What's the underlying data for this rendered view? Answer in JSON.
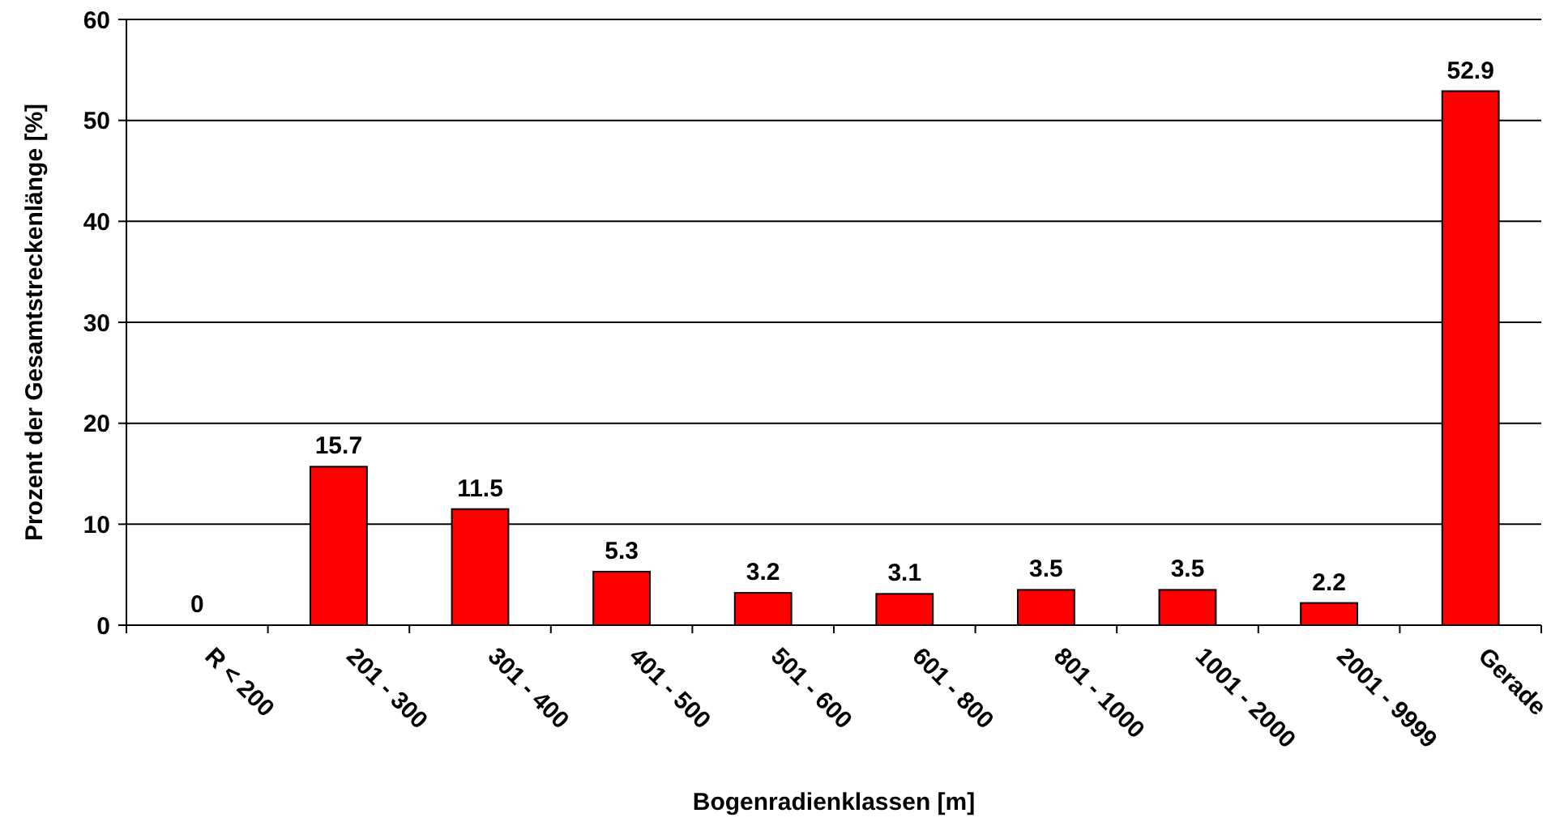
{
  "chart_data": {
    "type": "bar",
    "xlabel": "Bogenradienklassen [m]",
    "ylabel": "Prozent der Gesamtstreckenlänge [%]",
    "categories": [
      "R < 200",
      "201 - 300",
      "301 - 400",
      "401 - 500",
      "501 - 600",
      "601 - 800",
      "801 - 1000",
      "1001 - 2000",
      "2001 - 9999",
      "Gerade"
    ],
    "values": [
      0,
      15.7,
      11.5,
      5.3,
      3.2,
      3.1,
      3.5,
      3.5,
      2.2,
      52.9
    ],
    "color": "#ff0000",
    "ylim": [
      0,
      60
    ],
    "yticks": [
      0,
      10,
      20,
      30,
      40,
      50,
      60
    ],
    "grid": "y",
    "data_labels": true
  }
}
